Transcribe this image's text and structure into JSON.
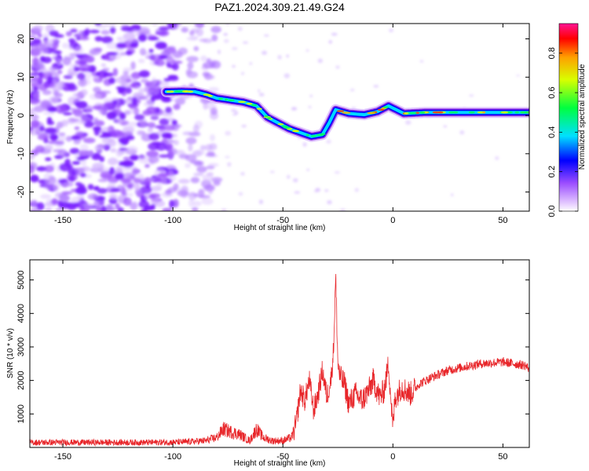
{
  "title": "PAZ1.2024.309.21.49.G24",
  "chart_data": [
    {
      "type": "heatmap",
      "xlabel": "Height of straight line (km)",
      "ylabel": "Frequency (Hz)",
      "xlim": [
        -165,
        62
      ],
      "ylim": [
        -25,
        24
      ],
      "xticks": [
        -150,
        -100,
        -50,
        0,
        50
      ],
      "yticks": [
        -20,
        -10,
        0,
        10,
        20
      ],
      "colorbar": {
        "label": "Normalized spectral amplitude",
        "range": [
          0,
          0.95
        ],
        "ticks": [
          0.0,
          0.2,
          0.4,
          0.6,
          0.8
        ]
      },
      "ridge": [
        {
          "x": -103,
          "y": 6.2
        },
        {
          "x": -96,
          "y": 6.3
        },
        {
          "x": -90,
          "y": 6.2
        },
        {
          "x": -85,
          "y": 5.5
        },
        {
          "x": -80,
          "y": 4.5
        },
        {
          "x": -74,
          "y": 4.0
        },
        {
          "x": -68,
          "y": 3.5
        },
        {
          "x": -62,
          "y": 2.5
        },
        {
          "x": -57,
          "y": -0.5
        },
        {
          "x": -52,
          "y": -2.0
        },
        {
          "x": -47,
          "y": -3.5
        },
        {
          "x": -42,
          "y": -4.5
        },
        {
          "x": -37,
          "y": -5.5
        },
        {
          "x": -32,
          "y": -5.0
        },
        {
          "x": -29,
          "y": -2.0
        },
        {
          "x": -26,
          "y": 1.5
        },
        {
          "x": -20,
          "y": 0.5
        },
        {
          "x": -13,
          "y": 0.2
        },
        {
          "x": -7,
          "y": 1.0
        },
        {
          "x": -2,
          "y": 2.5
        },
        {
          "x": 5,
          "y": 0.5
        },
        {
          "x": 15,
          "y": 0.8
        },
        {
          "x": 30,
          "y": 0.8
        },
        {
          "x": 45,
          "y": 0.8
        },
        {
          "x": 62,
          "y": 0.8
        }
      ]
    },
    {
      "type": "line",
      "xlabel": "Height of straight line (km)",
      "ylabel": "SNR (10 * v/v)",
      "xlim": [
        -165,
        62
      ],
      "ylim": [
        0,
        5600
      ],
      "xticks": [
        -150,
        -100,
        -50,
        0,
        50
      ],
      "yticks": [
        1000,
        2000,
        3000,
        4000,
        5000
      ],
      "series": [
        {
          "color": "#e8262a",
          "x": [
            -165,
            -150,
            -130,
            -110,
            -95,
            -85,
            -80,
            -77,
            -73,
            -70,
            -65,
            -62,
            -59,
            -55,
            -50,
            -46,
            -44,
            -42,
            -40,
            -38,
            -36,
            -34,
            -32,
            -30,
            -28,
            -27,
            -26,
            -25,
            -24,
            -22,
            -20,
            -17,
            -14,
            -11,
            -9,
            -6,
            -4,
            -2,
            0,
            1,
            4,
            8,
            12,
            18,
            25,
            32,
            40,
            50,
            55,
            60,
            62
          ],
          "values": [
            150,
            150,
            150,
            150,
            160,
            200,
            300,
            550,
            450,
            400,
            200,
            550,
            300,
            200,
            200,
            300,
            700,
            1700,
            1400,
            2000,
            1100,
            1600,
            2300,
            1500,
            2100,
            2900,
            5100,
            2500,
            2100,
            1900,
            1300,
            1600,
            1400,
            1700,
            2000,
            1500,
            1700,
            2500,
            600,
            1500,
            1800,
            1600,
            1900,
            2100,
            2300,
            2400,
            2500,
            2550,
            2500,
            2450,
            2350
          ]
        }
      ]
    }
  ]
}
